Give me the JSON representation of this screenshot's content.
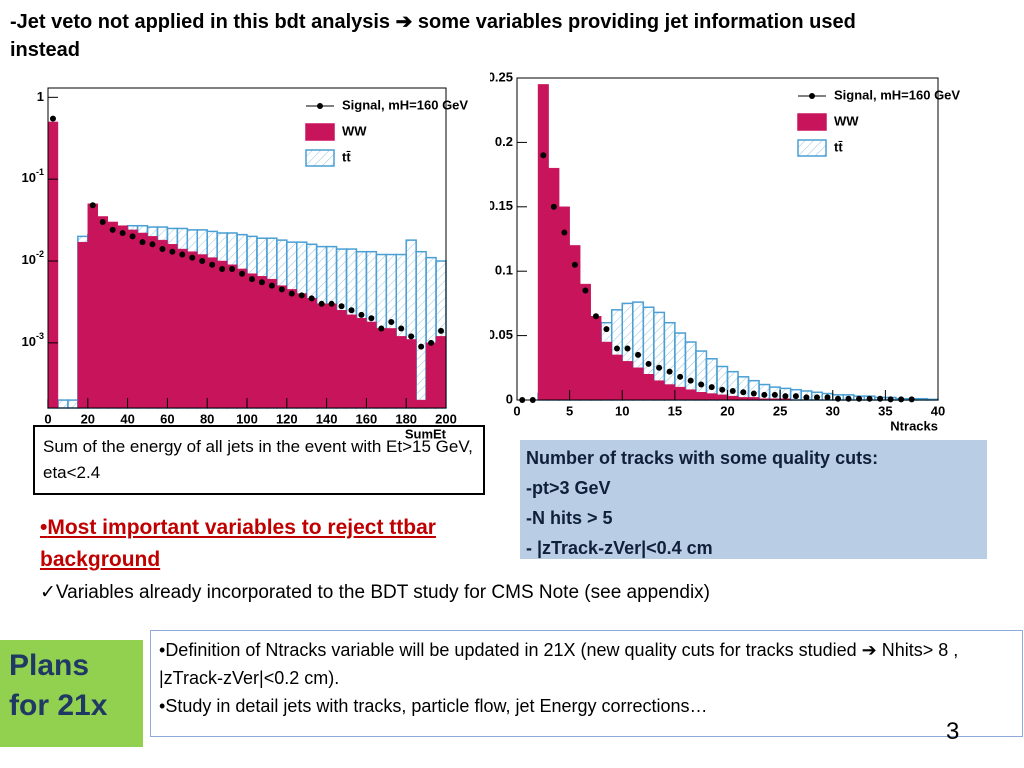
{
  "header": "-Jet veto not applied in this bdt analysis ➔ some variables providing jet information used instead",
  "chart_data": [
    {
      "type": "histogram",
      "log_y": true,
      "xlabel": "SumEt",
      "bins": [
        0,
        5,
        10,
        15,
        20,
        25,
        30,
        35,
        40,
        45,
        50,
        55,
        60,
        65,
        70,
        75,
        80,
        85,
        90,
        95,
        100,
        105,
        110,
        115,
        120,
        125,
        130,
        135,
        140,
        145,
        150,
        155,
        160,
        165,
        170,
        175,
        180,
        185,
        190,
        195,
        200
      ],
      "xlim": [
        0,
        200
      ],
      "ylim": [
        0.00016,
        1.3
      ],
      "xticks": [
        0,
        20,
        40,
        60,
        80,
        100,
        120,
        140,
        160,
        180,
        200
      ],
      "yticks": [
        1,
        {
          "value": 0.1,
          "label": "10-1"
        },
        {
          "value": 0.01,
          "label": "10-2"
        },
        {
          "value": 0.001,
          "label": "10-3"
        }
      ],
      "series": [
        {
          "name": "tt̄",
          "color": "#4a9fd4",
          "hatch": true,
          "values": [
            0.0002,
            0.0002,
            0.0002,
            0.02,
            0.021,
            0.022,
            0.024,
            0.026,
            0.027,
            0.027,
            0.026,
            0.026,
            0.025,
            0.025,
            0.024,
            0.024,
            0.023,
            0.022,
            0.022,
            0.021,
            0.02,
            0.019,
            0.019,
            0.018,
            0.017,
            0.017,
            0.016,
            0.015,
            0.015,
            0.014,
            0.014,
            0.013,
            0.013,
            0.012,
            0.012,
            0.012,
            0.018,
            0.013,
            0.011,
            0.01
          ]
        },
        {
          "name": "WW",
          "color": "#c8145a",
          "values": [
            0.5,
            0,
            0,
            0.017,
            0.05,
            0.035,
            0.03,
            0.027,
            0.024,
            0.022,
            0.02,
            0.018,
            0.016,
            0.014,
            0.013,
            0.012,
            0.011,
            0.01,
            0.009,
            0.008,
            0.007,
            0.0065,
            0.006,
            0.005,
            0.0045,
            0.004,
            0.0035,
            0.003,
            0.003,
            0.0025,
            0.0022,
            0.002,
            0.0018,
            0.0015,
            0.0015,
            0.0012,
            0.0011,
            0.0002,
            0.001,
            0.0012
          ]
        },
        {
          "name": "Signal, mH=160 GeV",
          "color": "#000000",
          "marker": "points",
          "values": [
            0.55,
            null,
            null,
            null,
            0.048,
            0.03,
            0.024,
            0.022,
            0.02,
            0.017,
            0.016,
            0.014,
            0.013,
            0.012,
            0.011,
            0.01,
            0.009,
            0.008,
            0.008,
            0.007,
            0.006,
            0.0055,
            0.005,
            0.0045,
            0.004,
            0.0038,
            0.0035,
            0.003,
            0.003,
            0.0028,
            0.0025,
            0.0022,
            0.002,
            0.0015,
            0.0018,
            0.0015,
            0.0012,
            0.0009,
            0.001,
            0.0014
          ]
        }
      ]
    },
    {
      "type": "histogram",
      "log_y": false,
      "xlabel": "Ntracks",
      "bins": [
        0,
        1,
        2,
        3,
        4,
        5,
        6,
        7,
        8,
        9,
        10,
        11,
        12,
        13,
        14,
        15,
        16,
        17,
        18,
        19,
        20,
        21,
        22,
        23,
        24,
        25,
        26,
        27,
        28,
        29,
        30,
        31,
        32,
        33,
        34,
        35,
        36,
        37,
        38,
        39,
        40
      ],
      "xlim": [
        0,
        40
      ],
      "ylim": [
        0,
        0.25
      ],
      "xticks": [
        0,
        5,
        10,
        15,
        20,
        25,
        30,
        35,
        40
      ],
      "yticks": [
        0,
        0.05,
        0.1,
        0.15,
        0.2,
        0.25
      ],
      "series": [
        {
          "name": "tt̄",
          "color": "#4a9fd4",
          "hatch": true,
          "values": [
            0,
            0,
            0.005,
            0.01,
            0.015,
            0.02,
            0.035,
            0.05,
            0.06,
            0.07,
            0.075,
            0.076,
            0.072,
            0.068,
            0.06,
            0.052,
            0.045,
            0.038,
            0.032,
            0.026,
            0.022,
            0.018,
            0.015,
            0.012,
            0.01,
            0.009,
            0.008,
            0.007,
            0.006,
            0.005,
            0.004,
            0.004,
            0.003,
            0.003,
            0.002,
            0.002,
            0.001,
            0.001,
            0.001,
            0.0005
          ]
        },
        {
          "name": "WW",
          "color": "#c8145a",
          "values": [
            0,
            0,
            0.245,
            0.18,
            0.15,
            0.12,
            0.09,
            0.065,
            0.045,
            0.035,
            0.03,
            0.025,
            0.02,
            0.015,
            0.012,
            0.01,
            0.008,
            0.006,
            0.005,
            0.004,
            0.003,
            0.002,
            0.002,
            0.001,
            0.001,
            0.001,
            0,
            0,
            0,
            0,
            0,
            0,
            0,
            0,
            0,
            0,
            0,
            0,
            0,
            0
          ]
        },
        {
          "name": "Signal, mH=160 GeV",
          "color": "#000000",
          "marker": "points",
          "values": [
            0,
            0,
            0.19,
            0.15,
            0.13,
            0.105,
            0.085,
            0.065,
            0.055,
            0.04,
            0.04,
            0.035,
            0.028,
            0.025,
            0.022,
            0.018,
            0.015,
            0.012,
            0.01,
            0.008,
            0.007,
            0.006,
            0.005,
            0.004,
            0.004,
            0.003,
            0.003,
            0.002,
            0.002,
            0.002,
            0.001,
            0.001,
            0.001,
            0.001,
            0.001,
            0.0005,
            0.0005,
            0.0005,
            null,
            null
          ]
        }
      ]
    }
  ],
  "caption_left": "Sum of the energy of all jets in the event with Et>15 GeV, eta<2.4",
  "caption_right": [
    "Number of tracks with some quality cuts:",
    "-pt>3 GeV",
    "-N hits > 5",
    "- |zTrack-zVer|<0.4 cm"
  ],
  "bullets": [
    "Most important variables to reject  ttbar background",
    "Variables already incorporated to the BDT study for CMS Note (see appendix)"
  ],
  "plans": {
    "title": "Plans for 21x",
    "items": [
      "Definition of Ntracks variable will be updated in 21X  (new quality cuts for tracks  studied  ➔  Nhits> 8 , |zTrack-zVer|<0.2 cm).",
      "Study in detail   jets with tracks, particle flow,  jet Energy corrections…"
    ]
  },
  "page_number": "3"
}
